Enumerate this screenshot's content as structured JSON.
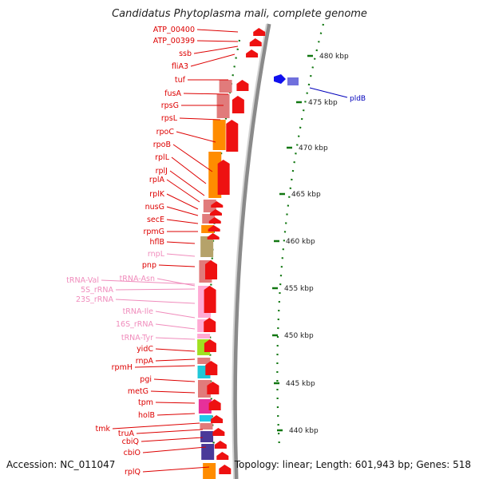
{
  "title": "Candidatus Phytoplasma mali, complete genome",
  "footer": {
    "accession": "Accession: NC_011047",
    "stats": "Topology: linear; Length: 601,943 bp; Genes: 518"
  },
  "colors": {
    "gene_label": "#dd0000",
    "rna_label": "#f08cbc",
    "plasmid_label": "#0000bb",
    "tick": "#117711",
    "backbone": "#999999",
    "arrow": "#ee1111"
  },
  "kbp_ticks": [
    {
      "label": "480 kbp"
    },
    {
      "label": "475 kbp"
    },
    {
      "label": "470 kbp"
    },
    {
      "label": "465 kbp"
    },
    {
      "label": "460 kbp"
    },
    {
      "label": "455 kbp"
    },
    {
      "label": "450 kbp"
    },
    {
      "label": "445 kbp"
    },
    {
      "label": "440 kbp"
    }
  ],
  "gene_labels": [
    {
      "name": "ATP_00400",
      "kind": "gene"
    },
    {
      "name": "ATP_00399",
      "kind": "gene"
    },
    {
      "name": "ssb",
      "kind": "gene"
    },
    {
      "name": "fliA3",
      "kind": "gene"
    },
    {
      "name": "tuf",
      "kind": "gene"
    },
    {
      "name": "fusA",
      "kind": "gene"
    },
    {
      "name": "rpsG",
      "kind": "gene"
    },
    {
      "name": "rpsL",
      "kind": "gene"
    },
    {
      "name": "rpoC",
      "kind": "gene"
    },
    {
      "name": "rpoB",
      "kind": "gene"
    },
    {
      "name": "rplL",
      "kind": "gene"
    },
    {
      "name": "rplJ",
      "kind": "gene"
    },
    {
      "name": "rplA",
      "kind": "gene"
    },
    {
      "name": "rplK",
      "kind": "gene"
    },
    {
      "name": "nusG",
      "kind": "gene"
    },
    {
      "name": "secE",
      "kind": "gene"
    },
    {
      "name": "rpmG",
      "kind": "gene"
    },
    {
      "name": "hflB",
      "kind": "gene"
    },
    {
      "name": "rnpL",
      "kind": "rna"
    },
    {
      "name": "pnp",
      "kind": "gene"
    },
    {
      "name": "tRNA-Val",
      "kind": "rna"
    },
    {
      "name": "tRNA-Asn",
      "kind": "rna"
    },
    {
      "name": "5S_rRNA",
      "kind": "rna"
    },
    {
      "name": "23S_rRNA",
      "kind": "rna"
    },
    {
      "name": "tRNA-Ile",
      "kind": "rna"
    },
    {
      "name": "16S_rRNA",
      "kind": "rna"
    },
    {
      "name": "tRNA-Tyr",
      "kind": "rna"
    },
    {
      "name": "yidC",
      "kind": "gene"
    },
    {
      "name": "rnpA",
      "kind": "gene"
    },
    {
      "name": "rpmH",
      "kind": "gene"
    },
    {
      "name": "pgi",
      "kind": "gene"
    },
    {
      "name": "metG",
      "kind": "gene"
    },
    {
      "name": "tpm",
      "kind": "gene"
    },
    {
      "name": "holB",
      "kind": "gene"
    },
    {
      "name": "tmk",
      "kind": "gene"
    },
    {
      "name": "truA",
      "kind": "gene"
    },
    {
      "name": "cbiQ",
      "kind": "gene"
    },
    {
      "name": "cbiO",
      "kind": "gene"
    },
    {
      "name": "rplQ",
      "kind": "gene"
    }
  ],
  "plasmid_label": "pldB",
  "feature_blocks": [
    {
      "color": "#e17b7b"
    },
    {
      "color": "#e17b7b"
    },
    {
      "color": "#ff8c00"
    },
    {
      "color": "#ff8c00"
    },
    {
      "color": "#e17b7b"
    },
    {
      "color": "#e17b7b"
    },
    {
      "color": "#ff8c00"
    },
    {
      "color": "#b5a26a"
    },
    {
      "color": "#e17b7b"
    },
    {
      "color": "#ffaad4"
    },
    {
      "color": "#ffaad4"
    },
    {
      "color": "#ffaad4"
    },
    {
      "color": "#a0e020"
    },
    {
      "color": "#e17b7b"
    },
    {
      "color": "#20c8d8"
    },
    {
      "color": "#e17b7b"
    },
    {
      "color": "#e6309a"
    },
    {
      "color": "#20c8e8"
    },
    {
      "color": "#e17b7b"
    },
    {
      "color": "#4a3a99"
    },
    {
      "color": "#4a3a99"
    },
    {
      "color": "#ff8c00"
    }
  ]
}
